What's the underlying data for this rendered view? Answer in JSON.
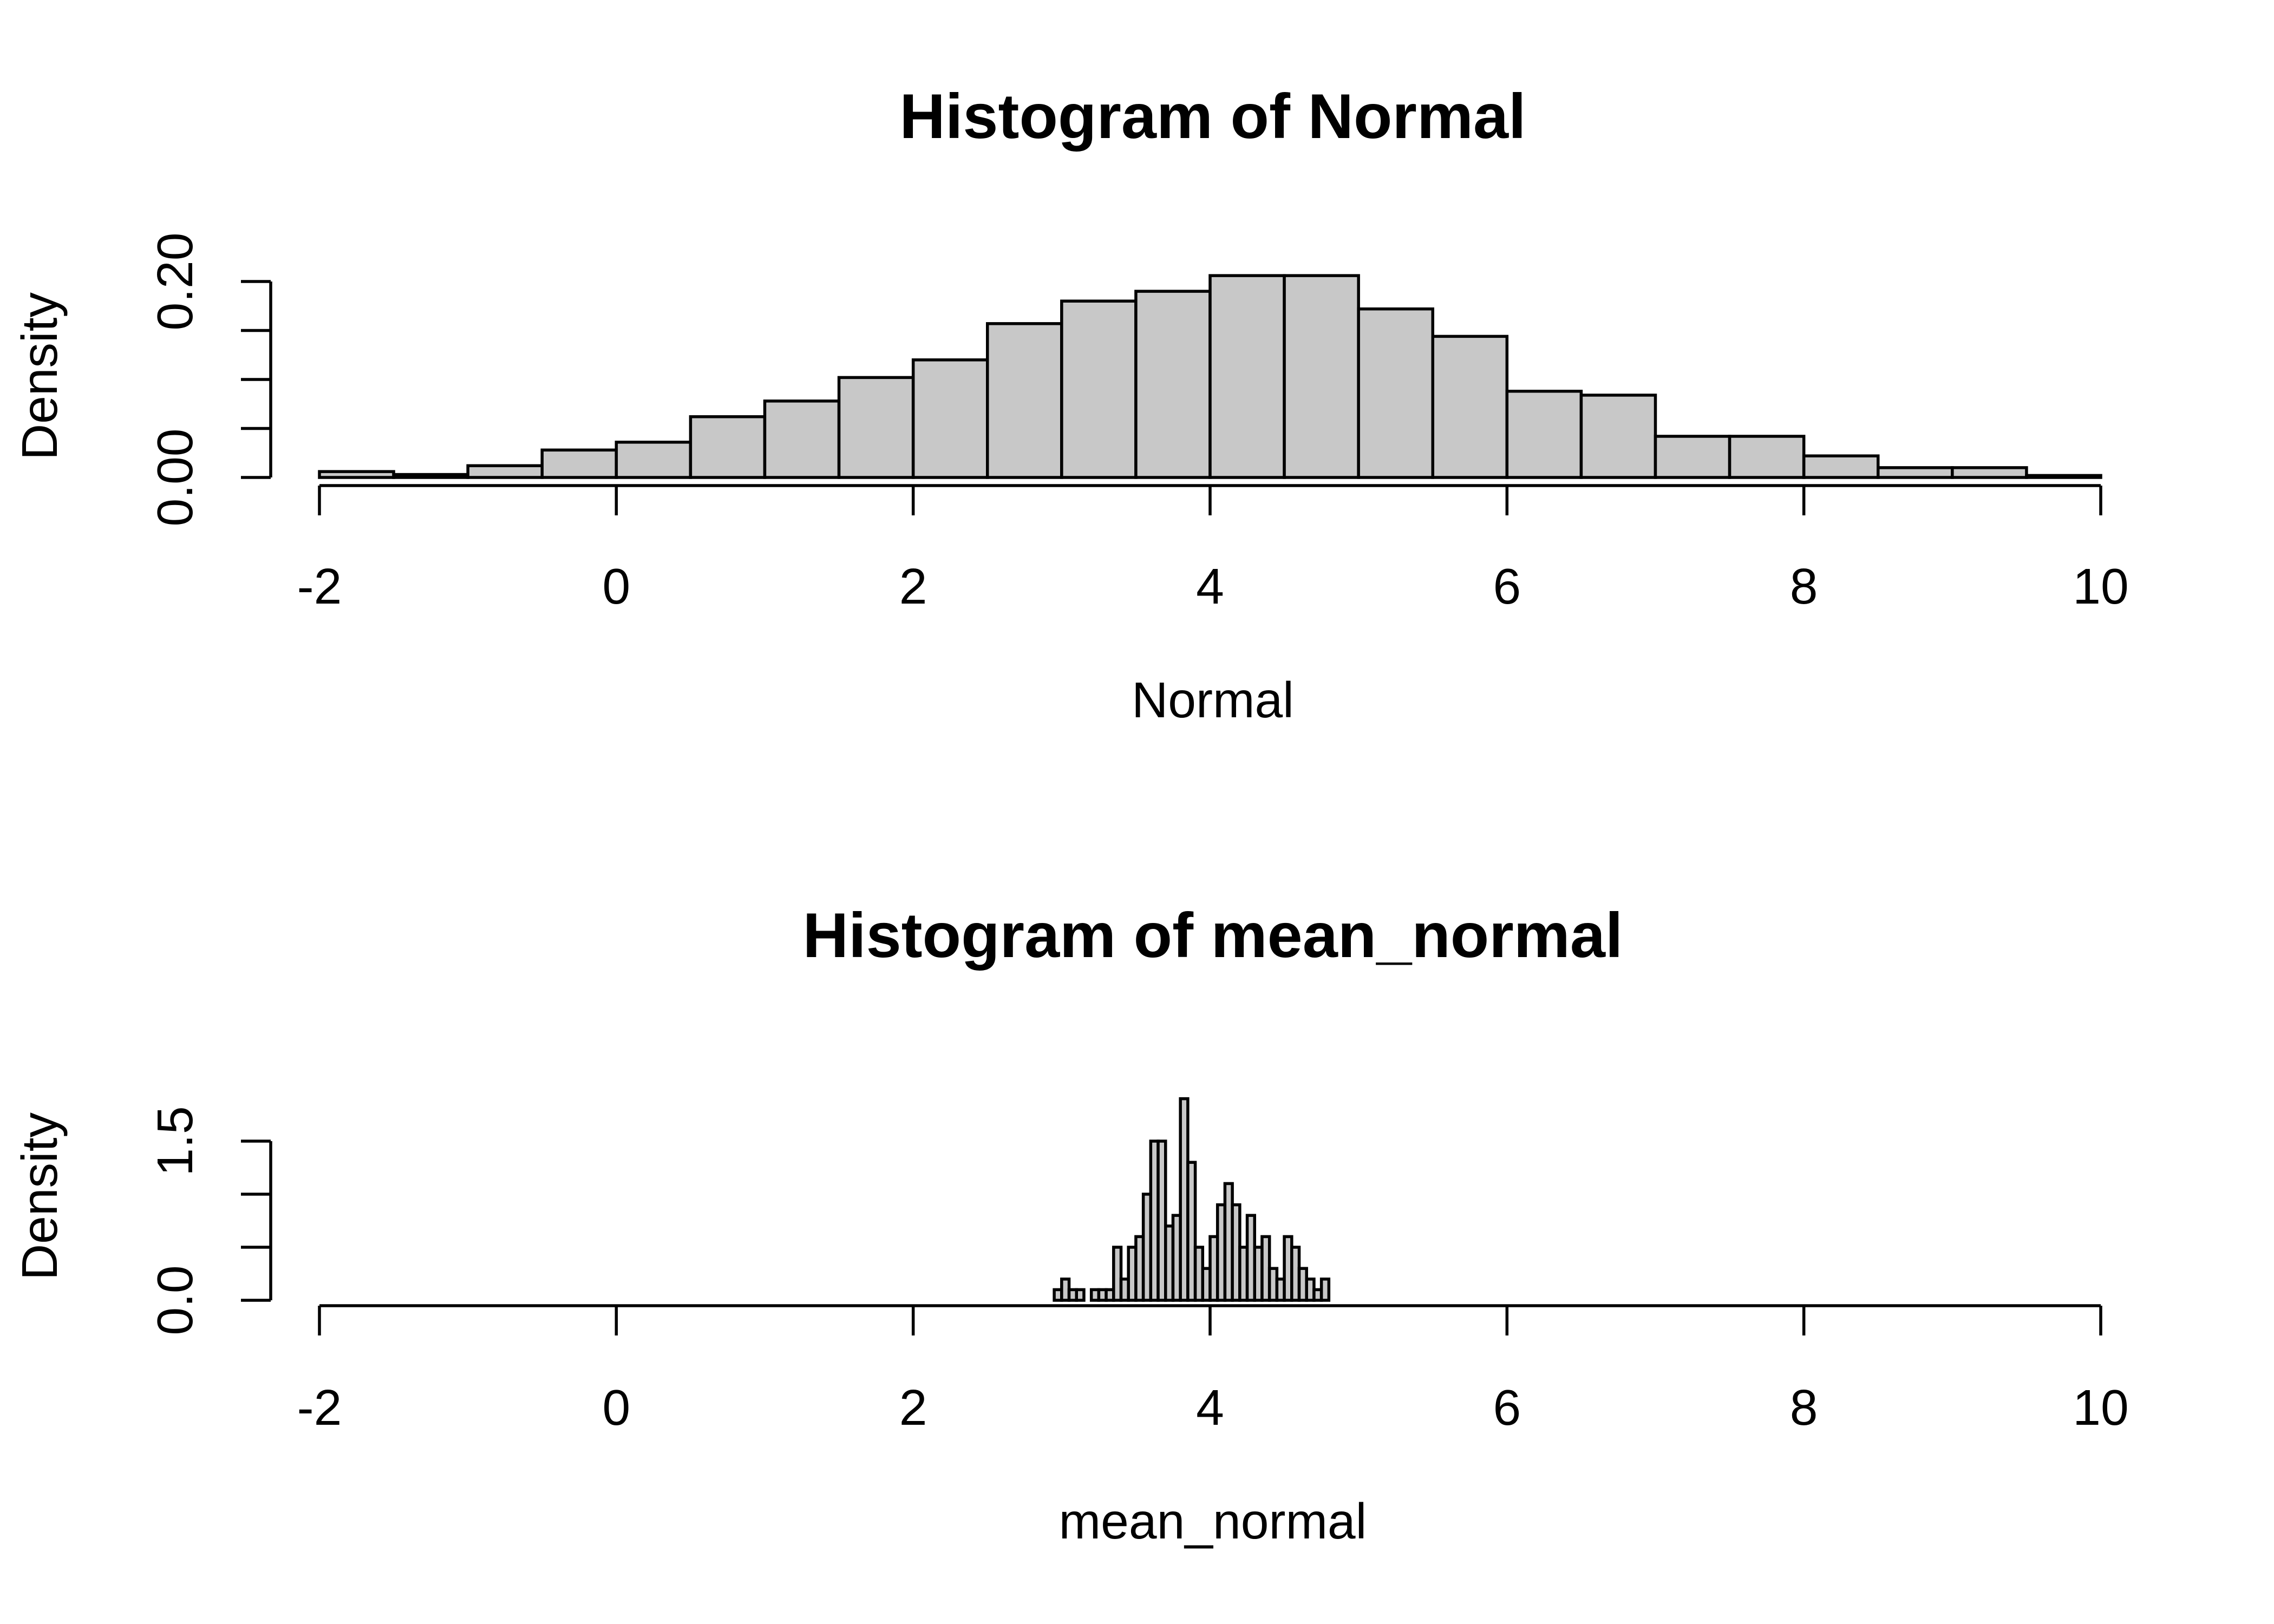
{
  "colors": {
    "bar_fill": "#c8c8c8",
    "stroke": "#000000",
    "background": "#ffffff"
  },
  "chart_data": [
    {
      "type": "bar",
      "subtype": "histogram",
      "title": "Histogram of Normal",
      "xlabel": "Normal",
      "ylabel": "Density",
      "xlim": [
        -2,
        10
      ],
      "ylim": [
        0,
        0.2
      ],
      "x_ticks": [
        -2,
        0,
        2,
        4,
        6,
        8,
        10
      ],
      "x_tick_labels": [
        "-2",
        "0",
        "2",
        "4",
        "6",
        "8",
        "10"
      ],
      "y_ticks": [
        0,
        0.05,
        0.1,
        0.15,
        0.2
      ],
      "y_tick_labels": [
        "0.00",
        "",
        "",
        "",
        "0.20"
      ],
      "bin_width": 0.5,
      "bin_starts": [
        -2,
        -1.5,
        -1,
        -0.5,
        0,
        0.5,
        1,
        1.5,
        2,
        2.5,
        3,
        3.5,
        4,
        4.5,
        5,
        5.5,
        6,
        6.5,
        7,
        7.5,
        8,
        8.5,
        9,
        9.5
      ],
      "values": [
        0.006,
        0.003,
        0.012,
        0.028,
        0.036,
        0.062,
        0.078,
        0.102,
        0.12,
        0.157,
        0.18,
        0.19,
        0.206,
        0.206,
        0.172,
        0.144,
        0.088,
        0.084,
        0.042,
        0.042,
        0.022,
        0.01,
        0.01,
        0.002
      ],
      "grid": false,
      "legend": "none"
    },
    {
      "type": "bar",
      "subtype": "histogram",
      "title": "Histogram of mean_normal",
      "xlabel": "mean_normal",
      "ylabel": "Density",
      "xlim": [
        -2,
        10
      ],
      "ylim": [
        0,
        1.5
      ],
      "x_ticks": [
        -2,
        0,
        2,
        4,
        6,
        8,
        10
      ],
      "x_tick_labels": [
        "-2",
        "0",
        "2",
        "4",
        "6",
        "8",
        "10"
      ],
      "y_ticks": [
        0,
        0.5,
        1,
        1.5
      ],
      "y_tick_labels": [
        "0.0",
        "",
        "",
        "1.5"
      ],
      "bin_width": 0.05,
      "bin_starts": [
        2.95,
        3.0,
        3.05,
        3.1,
        3.15,
        3.2,
        3.25,
        3.3,
        3.35,
        3.4,
        3.45,
        3.5,
        3.55,
        3.6,
        3.65,
        3.7,
        3.75,
        3.8,
        3.85,
        3.9,
        3.95,
        4.0,
        4.05,
        4.1,
        4.15,
        4.2,
        4.25,
        4.3,
        4.35,
        4.4,
        4.45,
        4.5,
        4.55,
        4.6,
        4.65,
        4.7,
        4.75
      ],
      "values": [
        0.1,
        0.2,
        0.1,
        0.1,
        0.0,
        0.1,
        0.1,
        0.1,
        0.5,
        0.2,
        0.5,
        0.6,
        1.0,
        1.5,
        1.5,
        0.7,
        0.8,
        1.9,
        1.3,
        0.5,
        0.3,
        0.6,
        0.9,
        1.1,
        0.9,
        0.5,
        0.8,
        0.5,
        0.6,
        0.3,
        0.2,
        0.6,
        0.5,
        0.3,
        0.2,
        0.1,
        0.2
      ],
      "grid": false,
      "legend": "none"
    }
  ]
}
